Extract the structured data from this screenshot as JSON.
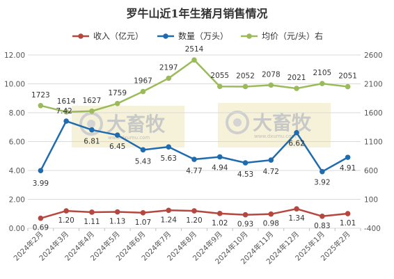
{
  "chart_data": {
    "type": "line",
    "title": "罗牛山近1年生猪月销售情况",
    "categories": [
      "2024年2月",
      "2024年3月",
      "2024年4月",
      "2024年5月",
      "2024年6月",
      "2024年7月",
      "2024年8月",
      "2024年9月",
      "2024年10月",
      "2024年11月",
      "2024年12月",
      "2025年1月",
      "2025年2月"
    ],
    "series": [
      {
        "name": "收入（亿元）",
        "axis": "left",
        "color": "#b5473f",
        "values": [
          0.69,
          1.2,
          1.11,
          1.13,
          1.07,
          1.24,
          1.2,
          1.02,
          0.93,
          0.98,
          1.34,
          0.83,
          1.01
        ],
        "labels": [
          "0.69",
          "1.20",
          "1.11",
          "1.13",
          "1.07",
          "1.24",
          "1.20",
          "1.02",
          "0.93",
          "0.98",
          "1.34",
          "0.83",
          "1.01"
        ]
      },
      {
        "name": "数量（万头）",
        "axis": "left",
        "color": "#1f6bb0",
        "values": [
          3.99,
          7.42,
          6.81,
          6.45,
          5.43,
          5.63,
          4.77,
          4.94,
          4.53,
          4.72,
          6.62,
          3.92,
          4.91
        ],
        "labels": [
          "3.99",
          "7.42",
          "6.81",
          "6.45",
          "5.43",
          "5.63",
          "4.77",
          "4.94",
          "4.53",
          "4.72",
          "6.62",
          "3.92",
          "4.91"
        ]
      },
      {
        "name": "均价（元/头）右",
        "axis": "right",
        "color": "#9bbb59",
        "values": [
          1723,
          1614,
          1627,
          1759,
          1967,
          2197,
          2514,
          2055,
          2052,
          2078,
          2021,
          2105,
          2051
        ],
        "labels": [
          "1723",
          "1614",
          "1627",
          "1759",
          "1967",
          "2197",
          "2514",
          "2055",
          "2052",
          "2078",
          "2021",
          "2105",
          "2051"
        ]
      }
    ],
    "y_left": {
      "min": 0,
      "max": 12,
      "step": 2,
      "tick_labels": [
        "0.00",
        "2.00",
        "4.00",
        "6.00",
        "8.00",
        "10.00",
        "12.00"
      ]
    },
    "y_right": {
      "min": -400,
      "max": 2600,
      "step": 500,
      "tick_labels": [
        "-400",
        "100",
        "600",
        "1100",
        "1600",
        "2100",
        "2600"
      ]
    },
    "grid": true,
    "legend_position": "top"
  },
  "watermark": {
    "text": "大畜牧",
    "sub": "www.dxumu.com"
  }
}
